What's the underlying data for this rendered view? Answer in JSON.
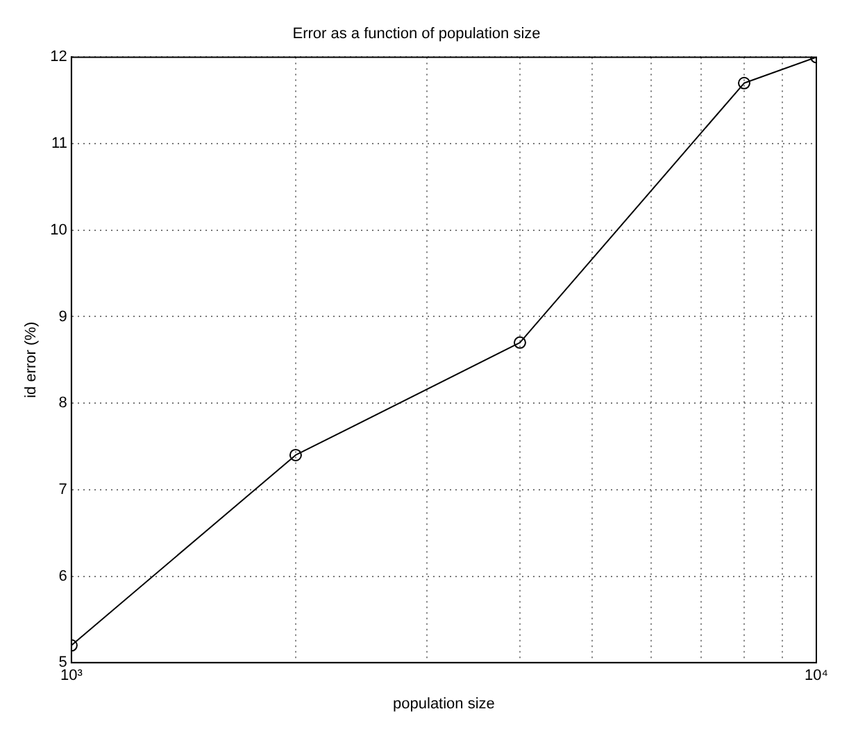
{
  "chart_data": {
    "type": "line",
    "title": "Error as a function of population size",
    "xlabel": "population size",
    "ylabel": "id error (%)",
    "log": "x",
    "x": [
      1000,
      2000,
      4000,
      8000,
      10000
    ],
    "series": [
      {
        "color": "#000000",
        "values": [
          5.2,
          7.4,
          8.7,
          11.7,
          12.0
        ]
      }
    ],
    "xlim": [
      1000,
      10000
    ],
    "xticks": [
      {
        "value": 1000,
        "label": "10³"
      },
      {
        "value": 2000,
        "label": null
      },
      {
        "value": 3000,
        "label": null
      },
      {
        "value": 4000,
        "label": null
      },
      {
        "value": 5000,
        "label": null
      },
      {
        "value": 6000,
        "label": null
      },
      {
        "value": 7000,
        "label": null
      },
      {
        "value": 8000,
        "label": null
      },
      {
        "value": 9000,
        "label": null
      },
      {
        "value": 10000,
        "label": "10⁴"
      }
    ],
    "ylim": [
      5,
      12
    ],
    "yticks": [
      5,
      6,
      7,
      8,
      9,
      10,
      11,
      12
    ],
    "grid": true,
    "legend": false,
    "marker": "circle",
    "line_style": "solid"
  }
}
